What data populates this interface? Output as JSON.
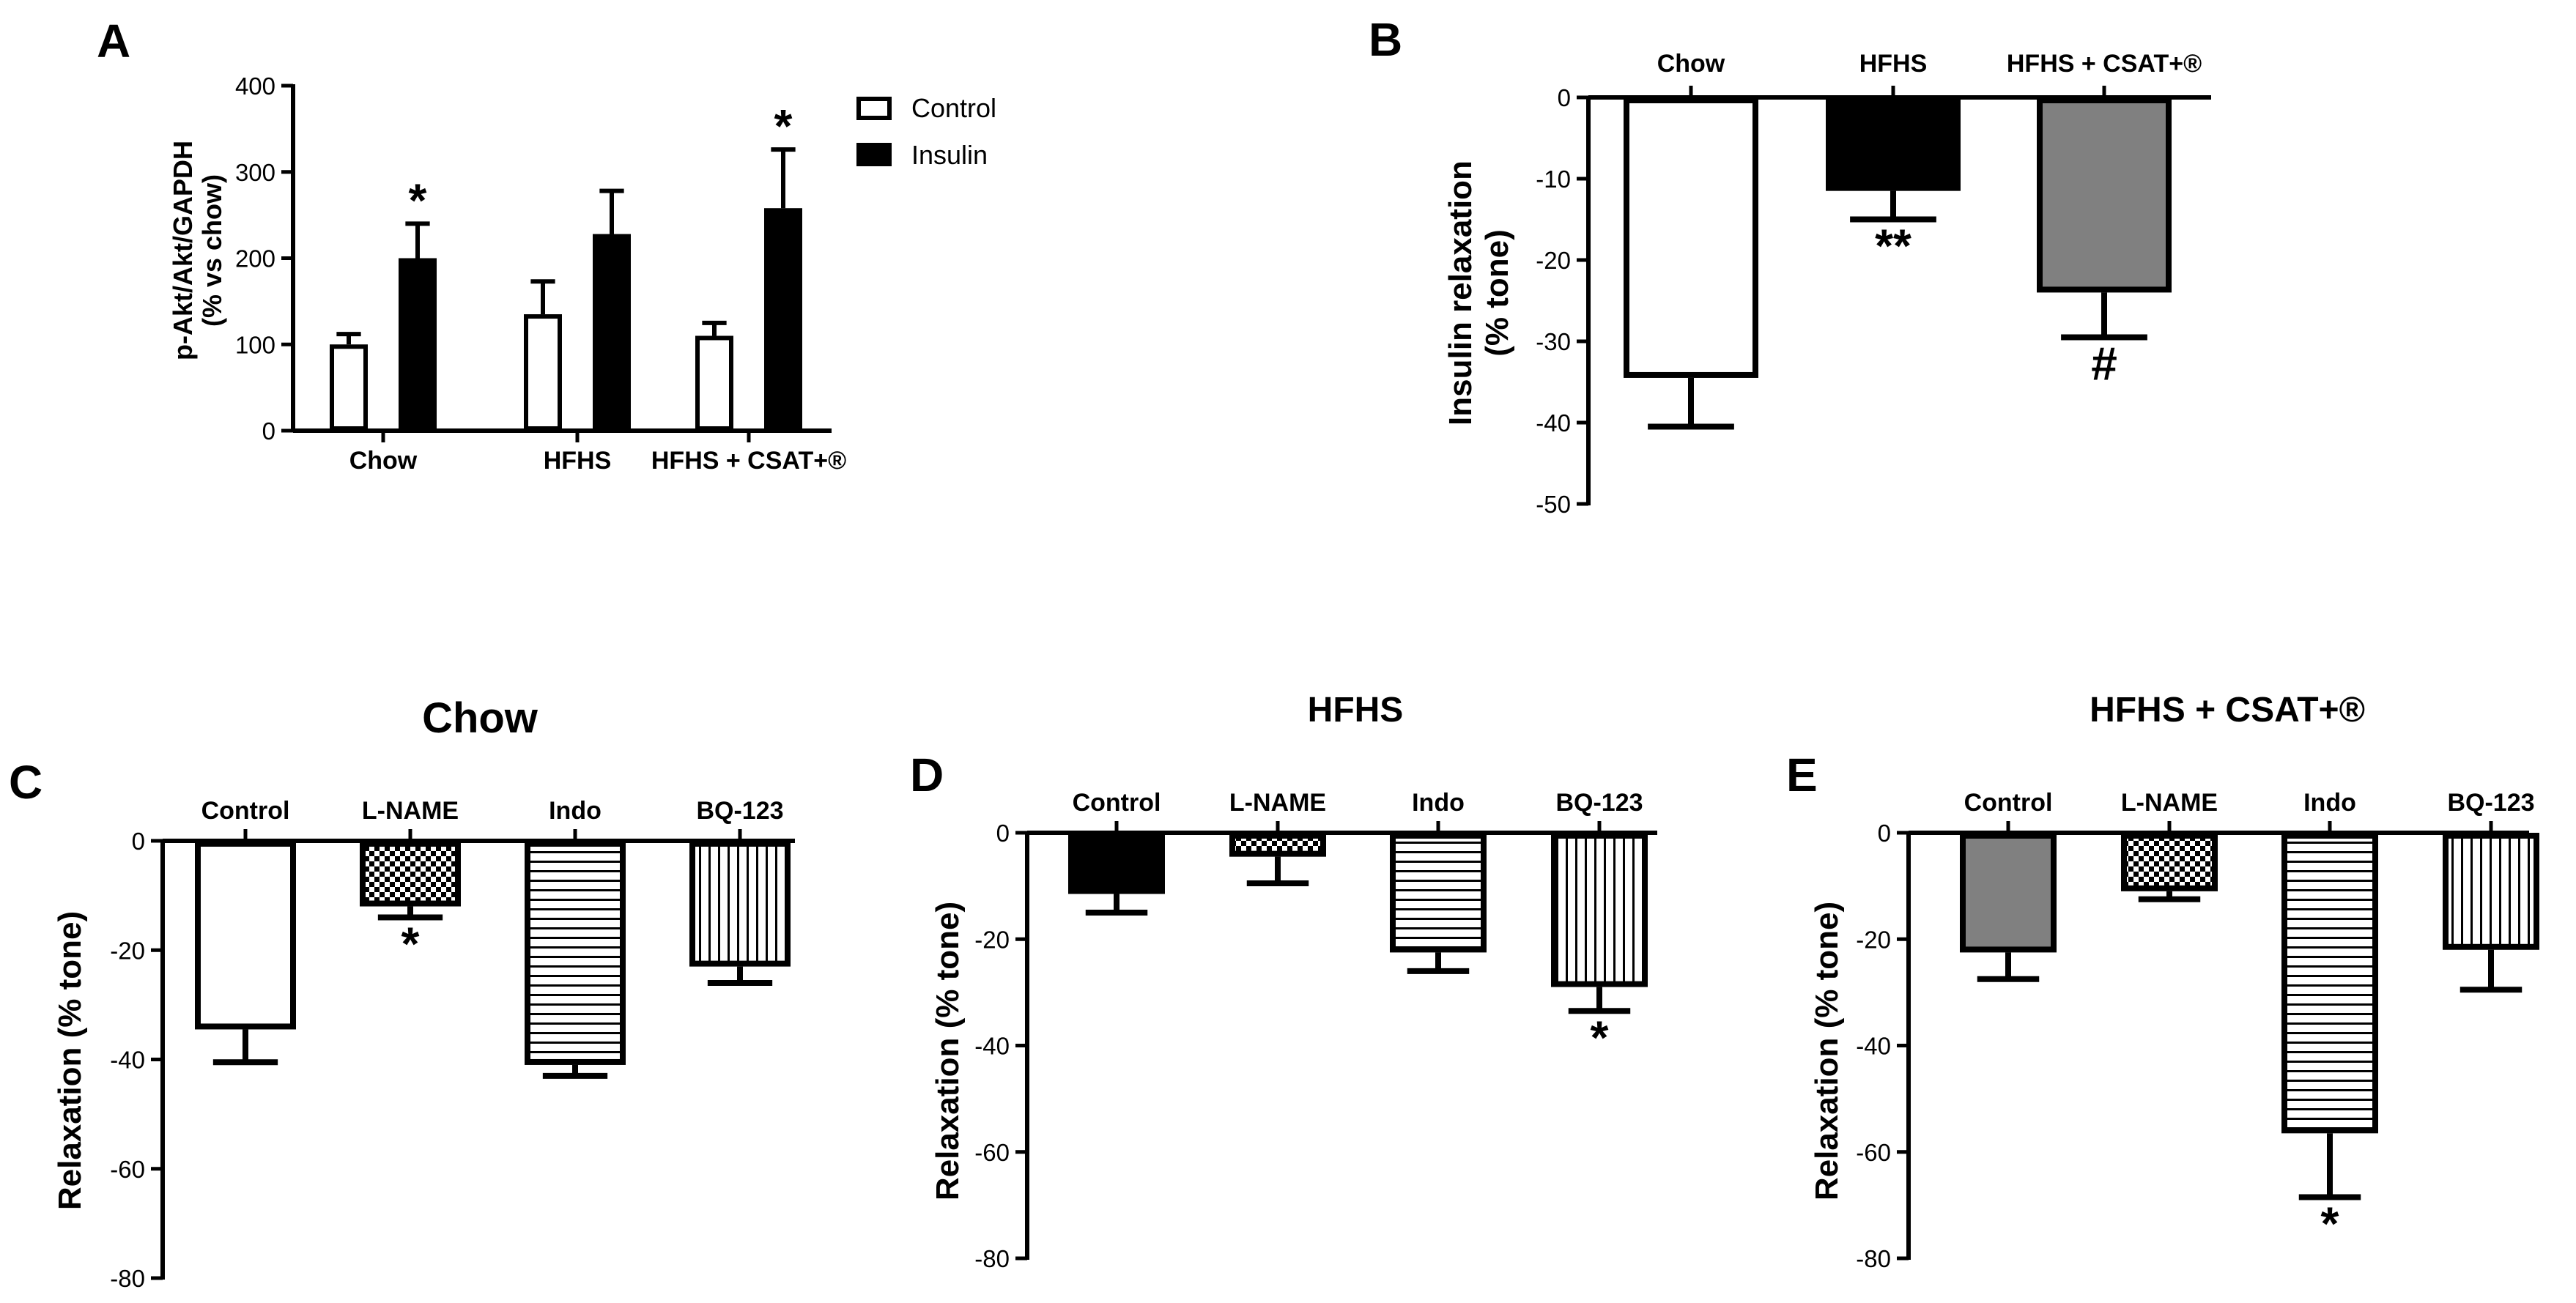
{
  "colors": {
    "white": "#ffffff",
    "black": "#000000",
    "gray": "#808080"
  },
  "chart_data": [
    {
      "id": "A",
      "panel_label": "A",
      "type": "bar",
      "title": "",
      "ylabel": "p-Akt/Akt/GAPDH",
      "ylabel2": "(% vs chow)",
      "ylim": [
        0,
        400
      ],
      "yticks": [
        0,
        100,
        200,
        300,
        400
      ],
      "categories": [
        "Chow",
        "HFHS",
        "HFHS + CSAT+®"
      ],
      "legend_position": "right",
      "series": [
        {
          "name": "Control",
          "values": [
            100,
            135,
            110
          ],
          "errors": [
            12,
            38,
            15
          ],
          "fill": "white",
          "significance": [
            "",
            "",
            ""
          ]
        },
        {
          "name": "Insulin",
          "values": [
            200,
            228,
            258
          ],
          "errors": [
            40,
            50,
            68
          ],
          "fill": "black",
          "significance": [
            "*",
            "",
            "*"
          ]
        }
      ]
    },
    {
      "id": "B",
      "panel_label": "B",
      "type": "bar",
      "title": "",
      "ylabel": "Insulin relaxation",
      "ylabel2": "(% tone)",
      "ylim": [
        -50,
        0
      ],
      "yticks": [
        0,
        -10,
        -20,
        -30,
        -40,
        -50
      ],
      "categories": [
        "Chow",
        "HFHS",
        "HFHS + CSAT+®"
      ],
      "values": [
        -34.5,
        -11.5,
        -24
      ],
      "errors": [
        6,
        3.5,
        5.5
      ],
      "fills": [
        "white",
        "black",
        "gray"
      ],
      "significance": [
        "",
        "**",
        "#"
      ]
    },
    {
      "id": "C",
      "panel_label": "C",
      "type": "bar",
      "title": "Chow",
      "ylabel": "Relaxation (% tone)",
      "ylim": [
        -80,
        0
      ],
      "yticks": [
        0,
        -20,
        -40,
        -60,
        -80
      ],
      "categories": [
        "Control",
        "L-NAME",
        "Indo",
        "BQ-123"
      ],
      "values": [
        -34.5,
        -12,
        -41,
        -23
      ],
      "errors": [
        6,
        2,
        2,
        3
      ],
      "fills": [
        "white",
        "checker",
        "hlines",
        "vlines"
      ],
      "significance": [
        "",
        "*",
        "",
        ""
      ]
    },
    {
      "id": "D",
      "panel_label": "D",
      "type": "bar",
      "title": "HFHS",
      "ylabel": "Relaxation (% tone)",
      "ylim": [
        -80,
        0
      ],
      "yticks": [
        0,
        -20,
        -40,
        -60,
        -80
      ],
      "categories": [
        "Control",
        "L-NAME",
        "Indo",
        "BQ-123"
      ],
      "values": [
        -11.5,
        -4.5,
        -22.5,
        -29
      ],
      "errors": [
        3.5,
        5,
        3.5,
        4.5
      ],
      "fills": [
        "black",
        "checker",
        "hlines",
        "vlines"
      ],
      "significance": [
        "",
        "",
        "",
        "*"
      ]
    },
    {
      "id": "E",
      "panel_label": "E",
      "type": "bar",
      "title": "HFHS + CSAT+®",
      "ylabel": "Relaxation (% tone)",
      "ylim": [
        -80,
        0
      ],
      "yticks": [
        0,
        -20,
        -40,
        -60,
        -80
      ],
      "categories": [
        "Control",
        "L-NAME",
        "Indo",
        "BQ-123"
      ],
      "values": [
        -22.5,
        -11,
        -56.5,
        -22
      ],
      "errors": [
        5,
        1.5,
        12,
        7.5
      ],
      "fills": [
        "gray",
        "checker",
        "hlines",
        "vlines"
      ],
      "significance": [
        "",
        "",
        "*",
        ""
      ]
    }
  ]
}
